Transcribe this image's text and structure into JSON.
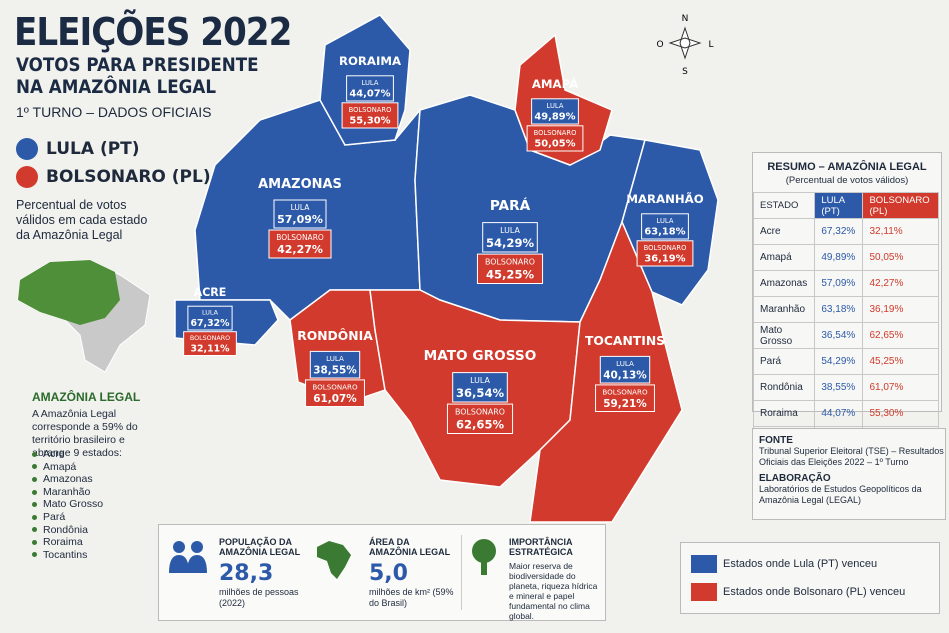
{
  "header": {
    "title": "ELEIÇÕES 2022",
    "subtitle_lines": [
      "VOTOS PARA PRESIDENTE",
      "NA AMAZÔNIA LEGAL"
    ],
    "round": "1º TURNO – DADOS OFICIAIS"
  },
  "compass": {
    "north": "N",
    "west": "O",
    "east": "L",
    "south": "S"
  },
  "candidates": [
    {
      "name": "LULA (PT)",
      "short": "LULA",
      "color": "#2c5aa8"
    },
    {
      "name": "BOLSONARO (PL)",
      "short": "BOLSONARO",
      "color": "#d13a2c"
    }
  ],
  "intro": "Percentual de votos válidos em cada estado da Amazônia Legal",
  "states": [
    {
      "map_name": "ACRE",
      "name": "Acre",
      "lula": "67,32%",
      "bolsonaro": "32,11%"
    },
    {
      "map_name": "AMAPÁ",
      "name": "Amapá",
      "lula": "49,89%",
      "bolsonaro": "50,05%"
    },
    {
      "map_name": "AMAZONAS",
      "name": "Amazonas",
      "lula": "57,09%",
      "bolsonaro": "42,27%"
    },
    {
      "map_name": "MARANHÃO",
      "name": "Maranhão",
      "lula": "63,18%",
      "bolsonaro": "36,19%"
    },
    {
      "map_name": "MATO GROSSO",
      "name": "Mato Grosso",
      "lula": "36,54%",
      "bolsonaro": "62,65%"
    },
    {
      "map_name": "PARÁ",
      "name": "Pará",
      "lula": "54,29%",
      "bolsonaro": "45,25%"
    },
    {
      "map_name": "RONDÔNIA",
      "name": "Rondônia",
      "lula": "38,55%",
      "bolsonaro": "61,07%"
    },
    {
      "map_name": "RORAIMA",
      "name": "Roraima",
      "lula": "44,07%",
      "bolsonaro": "55,30%"
    },
    {
      "map_name": "TOCANTINS",
      "name": "Tocantins",
      "lula": "40,13%",
      "bolsonaro": "59,21%"
    }
  ],
  "summary": {
    "title": "RESUMO – AMAZÔNIA LEGAL",
    "subtitle": "(Percentual de votos válidos)",
    "state_header": "ESTADO"
  },
  "about": {
    "title": "AMAZÔNIA LEGAL",
    "text": "A Amazônia Legal corresponde a 59% do território brasileiro e abrange 9 estados:"
  },
  "source": {
    "title": "FONTE",
    "text": "Tribunal Superior Eleitoral (TSE) – Resultados Oficiais das Eleições 2022 – 1º Turno",
    "credit_title": "ELABORAÇÃO",
    "credit_text": "Laboratórios de Estudos Geopolíticos da Amazônia Legal (LEGAL)"
  },
  "facts": [
    {
      "title": "POPULAÇÃO DA AMAZÔNIA LEGAL",
      "value": "28,3",
      "note": "milhões de pessoas (2022)"
    },
    {
      "title": "ÁREA DA AMAZÔNIA LEGAL",
      "value": "5,0",
      "note": "milhões de km² (59% do Brasil)"
    },
    {
      "title": "IMPORTÂNCIA ESTRATÉGICA",
      "note": "Maior reserva de biodiversidade do planeta, riqueza hídrica e mineral e papel fundamental no clima global."
    }
  ],
  "legend": [
    "Estados onde Lula (PT) venceu",
    "Estados onde Bolsonaro (PL) venceu"
  ]
}
